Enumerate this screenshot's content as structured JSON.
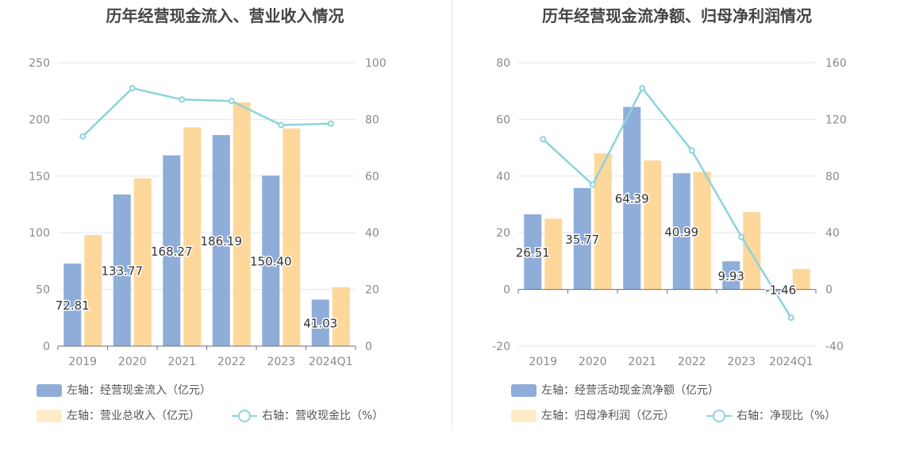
{
  "chart_data": [
    {
      "type": "bar",
      "title": "历年经营现金流入、营业收入情况",
      "categories": [
        "2019",
        "2020",
        "2021",
        "2022",
        "2023",
        "2024Q1"
      ],
      "left_axis": {
        "ticks": [
          "0",
          "50",
          "100",
          "150",
          "200",
          "250"
        ],
        "ylim": [
          0,
          250
        ]
      },
      "right_axis": {
        "ticks": [
          "0",
          "20",
          "40",
          "60",
          "80",
          "100"
        ],
        "ylim": [
          0,
          100
        ]
      },
      "series": [
        {
          "name": "左轴：经营现金流入（亿元）",
          "type": "bar",
          "axis": "left",
          "color": "#8eadd9",
          "values": [
            72.81,
            133.77,
            168.27,
            186.19,
            150.4,
            41.03
          ],
          "labels": [
            "72.81",
            "133.77",
            "168.27",
            "186.19",
            "150.40",
            "41.03"
          ]
        },
        {
          "name": "左轴：营业总收入（亿元）",
          "type": "bar",
          "axis": "left",
          "color": "#fed89a",
          "values": [
            98,
            148,
            193,
            215,
            192,
            52
          ]
        },
        {
          "name": "右轴：营收现金比（%）",
          "type": "line",
          "axis": "right",
          "color": "#8dd3dc",
          "values": [
            74,
            91,
            87,
            86.5,
            78,
            78.5
          ]
        }
      ],
      "grid": true,
      "legend": "bottom"
    },
    {
      "type": "bar",
      "title": "历年经营现金流净额、归母净利润情况",
      "categories": [
        "2019",
        "2020",
        "2021",
        "2022",
        "2023",
        "2024Q1"
      ],
      "left_axis": {
        "ticks": [
          "-20",
          "0",
          "20",
          "40",
          "60",
          "80"
        ],
        "ylim": [
          -20,
          80
        ]
      },
      "right_axis": {
        "ticks": [
          "-40",
          "0",
          "40",
          "80",
          "120",
          "160"
        ],
        "ylim": [
          -40,
          160
        ]
      },
      "series": [
        {
          "name": "左轴：经营活动现金流净额（亿元）",
          "type": "bar",
          "axis": "left",
          "color": "#8eadd9",
          "values": [
            26.51,
            35.77,
            64.39,
            40.99,
            9.93,
            -1.46
          ],
          "labels": [
            "26.51",
            "35.77",
            "64.39",
            "40.99",
            "9.93",
            "-1.46"
          ]
        },
        {
          "name": "左轴：归母净利润（亿元）",
          "type": "bar",
          "axis": "left",
          "color": "#fed89a",
          "values": [
            25,
            48,
            45.5,
            41.5,
            27.3,
            7.2
          ]
        },
        {
          "name": "右轴：净现比（%）",
          "type": "line",
          "axis": "right",
          "color": "#8dd3dc",
          "values": [
            106,
            74,
            142,
            98,
            37,
            -20
          ]
        }
      ],
      "grid": true,
      "legend": "bottom"
    }
  ]
}
